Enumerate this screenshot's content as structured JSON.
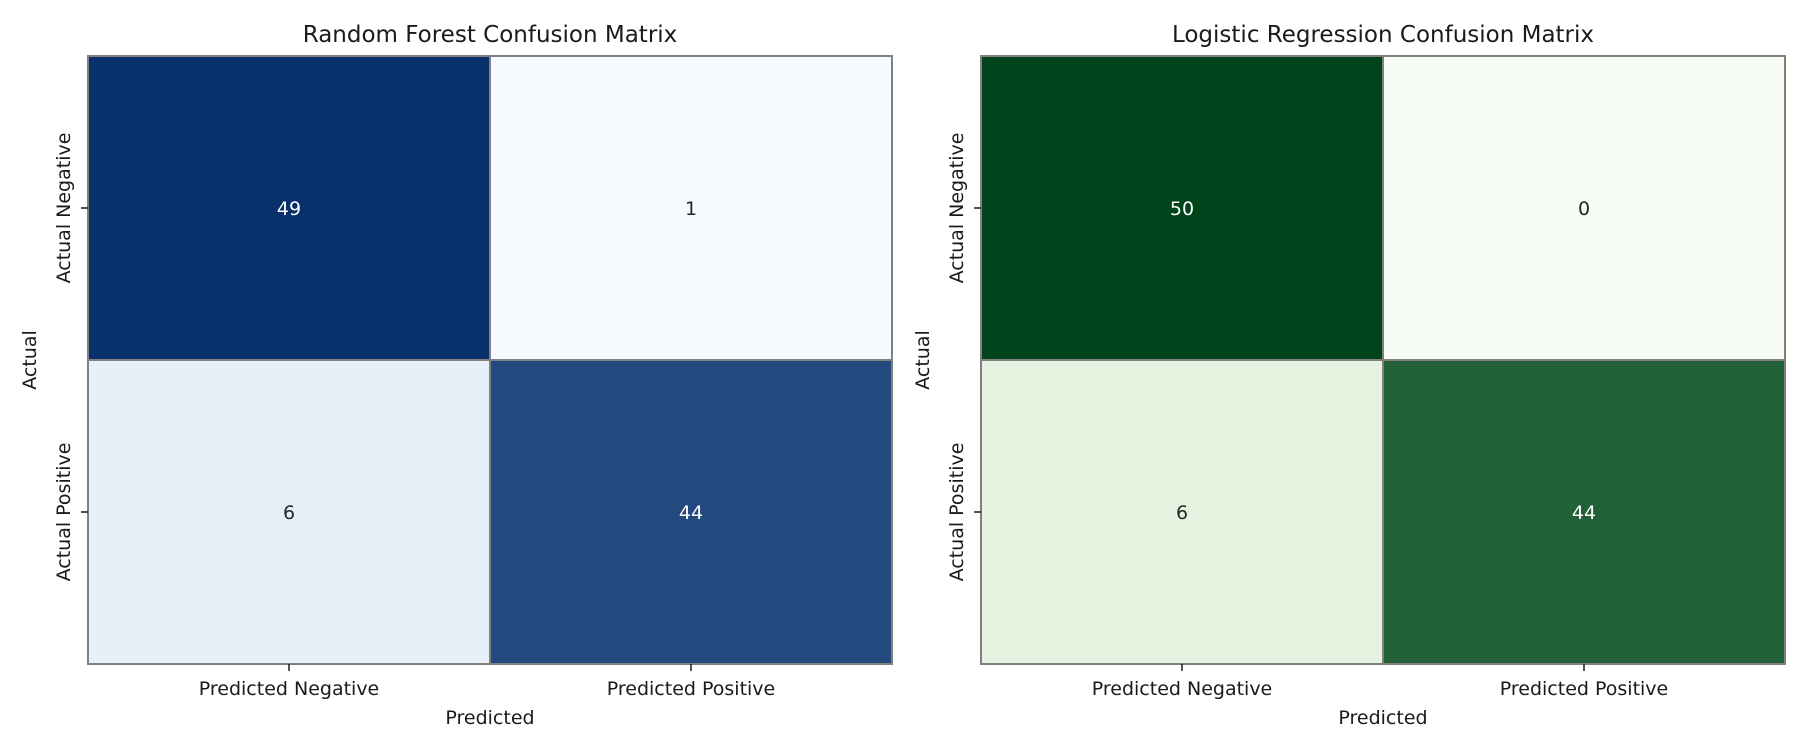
{
  "chart_data": [
    {
      "type": "heatmap",
      "title": "Random Forest Confusion Matrix",
      "xlabel": "Predicted",
      "ylabel": "Actual",
      "x_categories": [
        "Predicted Negative",
        "Predicted Positive"
      ],
      "y_categories": [
        "Actual Negative",
        "Actual Positive"
      ],
      "values": [
        [
          49,
          1
        ],
        [
          6,
          44
        ]
      ],
      "colormap": "Blues",
      "colors": {
        "low": "#f7fbff",
        "mid": "#c6dbef",
        "high": "#08306b",
        "text_dark": "#262626",
        "text_light": "#ffffff"
      },
      "grid": false,
      "colorbar": false
    },
    {
      "type": "heatmap",
      "title": "Logistic Regression Confusion Matrix",
      "xlabel": "Predicted",
      "ylabel": "Actual",
      "x_categories": [
        "Predicted Negative",
        "Predicted Positive"
      ],
      "y_categories": [
        "Actual Negative",
        "Actual Positive"
      ],
      "values": [
        [
          50,
          0
        ],
        [
          6,
          44
        ]
      ],
      "colormap": "Greens",
      "colors": {
        "low": "#f7fcf5",
        "mid": "#c7e9c0",
        "high": "#00441b",
        "text_dark": "#262626",
        "text_light": "#ffffff"
      },
      "grid": false,
      "colorbar": false
    }
  ]
}
